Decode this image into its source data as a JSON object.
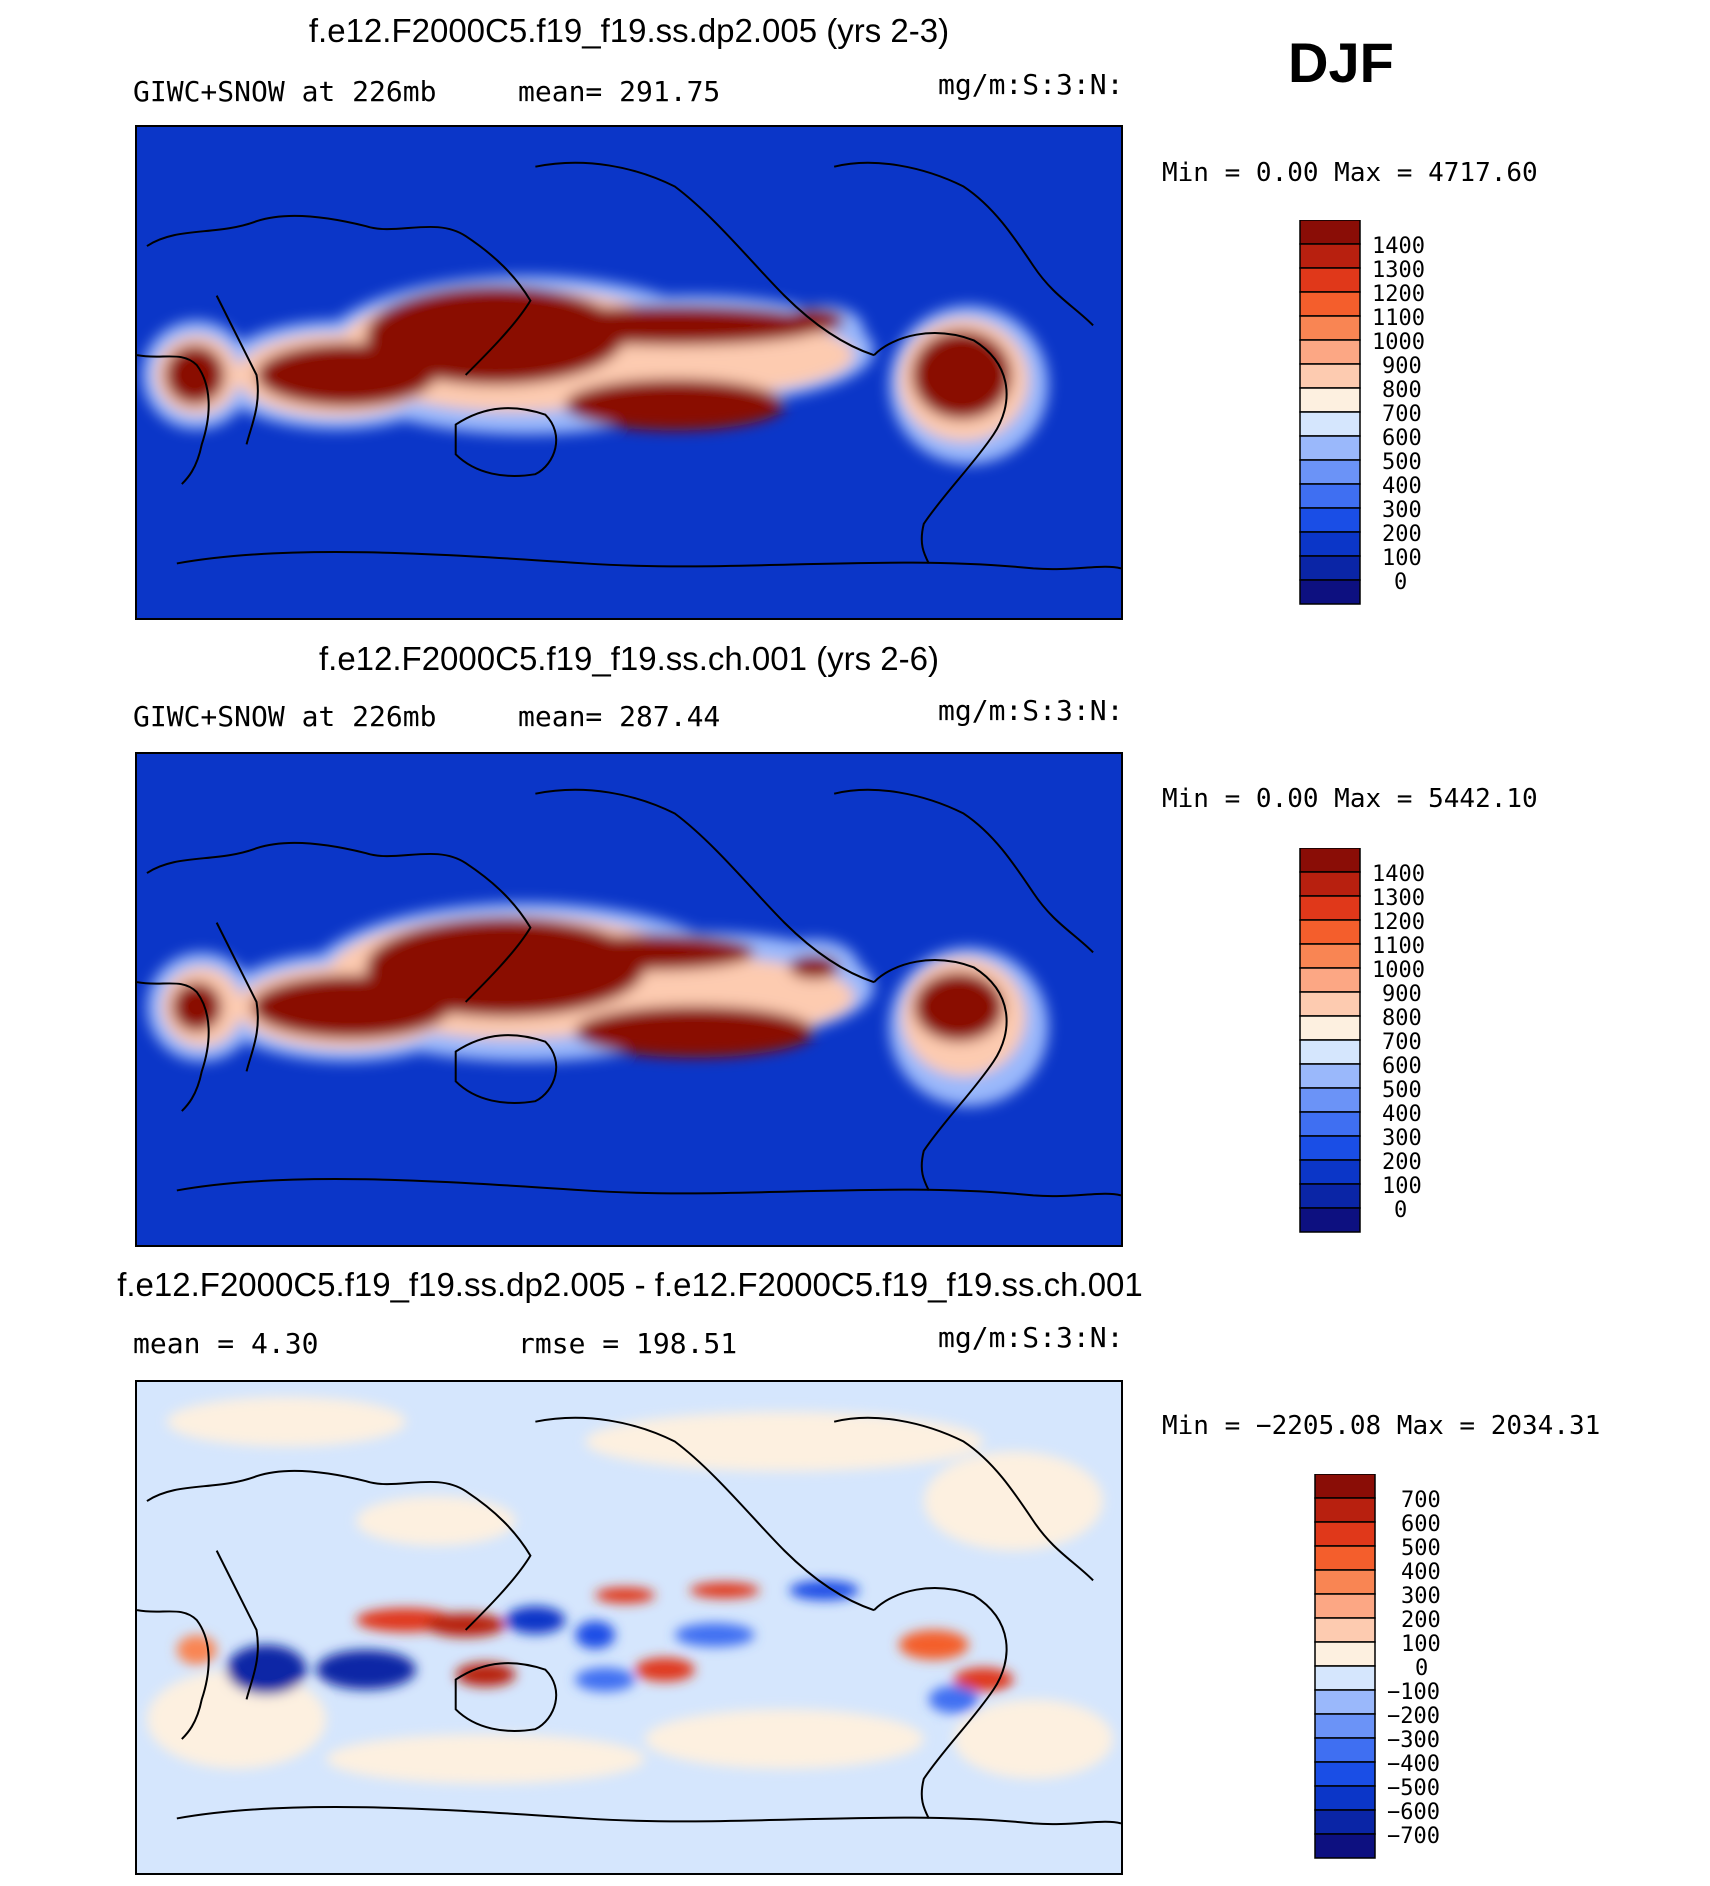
{
  "season": "DJF",
  "colors": {
    "seq": [
      "#0d1080",
      "#0a25a6",
      "#0b36c8",
      "#1a4ee6",
      "#3f6ff2",
      "#6b93f7",
      "#9ab8fb",
      "#d5e6fd",
      "#fdf0e0",
      "#fdcbb0",
      "#fca784",
      "#f98553",
      "#f45e2c",
      "#e0381a",
      "#b8200f",
      "#8a0d06"
    ],
    "div": [
      "#0d1080",
      "#0a25a6",
      "#0b36c8",
      "#1a4ee6",
      "#3f6ff2",
      "#6b93f7",
      "#9ab8fb",
      "#d5e6fd",
      "#fdf0e0",
      "#fdcbb0",
      "#fca784",
      "#f98553",
      "#f45e2c",
      "#e0381a",
      "#b8200f",
      "#8a0d06"
    ]
  },
  "chart_data": [
    {
      "type": "heatmap",
      "title": "f.e12.F2000C5.f19_f19.ss.dp2.005 (yrs 2-3)",
      "left_label": "GIWC+SNOW at 226mb",
      "mean_label": "mean= 291.75",
      "units": "mg/m:S:3:N:",
      "minmax_label": "Min =    0.00 Max = 4717.60",
      "colorbar_levels": [
        "1400",
        "1300",
        "1200",
        "1100",
        "1000",
        "900",
        "800",
        "700",
        "600",
        "500",
        "400",
        "300",
        "200",
        "100",
        "0"
      ]
    },
    {
      "type": "heatmap",
      "title": "f.e12.F2000C5.f19_f19.ss.ch.001 (yrs 2-6)",
      "left_label": "GIWC+SNOW at 226mb",
      "mean_label": "mean= 287.44",
      "units": "mg/m:S:3:N:",
      "minmax_label": "Min =    0.00 Max = 5442.10",
      "colorbar_levels": [
        "1400",
        "1300",
        "1200",
        "1100",
        "1000",
        "900",
        "800",
        "700",
        "600",
        "500",
        "400",
        "300",
        "200",
        "100",
        "0"
      ]
    },
    {
      "type": "heatmap",
      "title": "f.e12.F2000C5.f19_f19.ss.dp2.005 - f.e12.F2000C5.f19_f19.ss.ch.001",
      "left_label": "mean =    4.30",
      "mean_label": "rmse = 198.51",
      "units": "mg/m:S:3:N:",
      "minmax_label": "Min = −2205.08 Max = 2034.31",
      "colorbar_levels": [
        "700",
        "600",
        "500",
        "400",
        "300",
        "200",
        "100",
        "0",
        "−100",
        "−200",
        "−300",
        "−400",
        "−500",
        "−600",
        "−700"
      ]
    }
  ]
}
